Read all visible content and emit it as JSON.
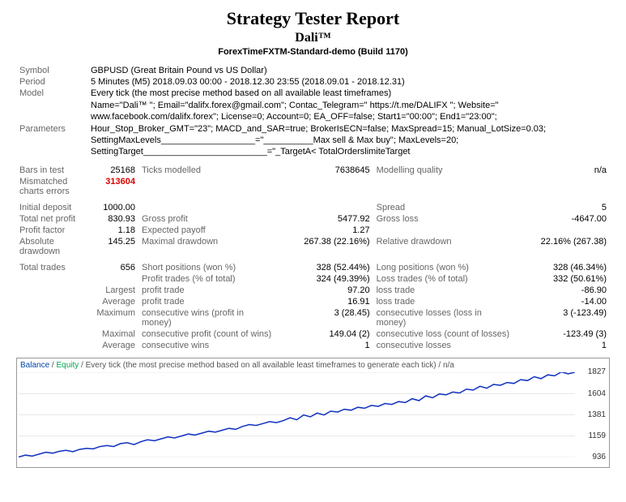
{
  "header": {
    "title": "Strategy Tester Report",
    "ea_name": "Dali™",
    "server": "ForexTimeFXTM-Standard-demo (Build 1170)"
  },
  "info": {
    "symbol_label": "Symbol",
    "symbol_value": "GBPUSD (Great Britain Pound vs US Dollar)",
    "period_label": "Period",
    "period_value": "5 Minutes (M5) 2018.09.03 00:00 - 2018.12.30 23:55 (2018.09.01 - 2018.12.31)",
    "model_label": "Model",
    "model_value": "Every tick (the most precise method based on all available least timeframes)",
    "parameters_label": "Parameters",
    "parameters_value": "Name=\"Dali™ \"; Email=\"dalifx.forex@gmail.com\"; Contac_Telegram=\" https://t.me/DALIFX \"; Website=\" www.facebook.com/dalifx.forex\"; License=0; Account=0; EA_OFF=false; Start1=\"00:00\"; End1=\"23:00\"; Hour_Stop_Broker_GMT=\"23\"; MACD_and_SAR=true; BrokerIsECN=false; MaxSpread=15; Manual_LotSize=0.03; SettingMaxLevels___________________=\"__________Max sell & Max buy\"; MaxLevels=20; SettingTarget_________________________=\"_TargetA< TotalOrderslimiteTarget"
  },
  "stats": {
    "bars_in_test_label": "Bars in test",
    "bars_in_test": "25168",
    "ticks_modelled_label": "Ticks modelled",
    "ticks_modelled": "7638645",
    "modelling_quality_label": "Modelling quality",
    "modelling_quality": "n/a",
    "mismatched_label": "Mismatched charts errors",
    "mismatched": "313604",
    "initial_deposit_label": "Initial deposit",
    "initial_deposit": "1000.00",
    "spread_label": "Spread",
    "spread": "5",
    "total_net_profit_label": "Total net profit",
    "total_net_profit": "830.93",
    "gross_profit_label": "Gross profit",
    "gross_profit": "5477.92",
    "gross_loss_label": "Gross loss",
    "gross_loss": "-4647.00",
    "profit_factor_label": "Profit factor",
    "profit_factor": "1.18",
    "expected_payoff_label": "Expected payoff",
    "expected_payoff": "1.27",
    "absolute_drawdown_label": "Absolute drawdown",
    "absolute_drawdown": "145.25",
    "maximal_drawdown_label": "Maximal drawdown",
    "maximal_drawdown": "267.38 (22.16%)",
    "relative_drawdown_label": "Relative drawdown",
    "relative_drawdown": "22.16% (267.38)",
    "total_trades_label": "Total trades",
    "total_trades": "656",
    "short_positions_label": "Short positions (won %)",
    "short_positions": "328 (52.44%)",
    "long_positions_label": "Long positions (won %)",
    "long_positions": "328 (46.34%)",
    "profit_trades_label": "Profit trades (% of total)",
    "profit_trades": "324 (49.39%)",
    "loss_trades_label": "Loss trades (% of total)",
    "loss_trades": "332 (50.61%)",
    "largest_label": "Largest",
    "largest_profit_trade_label": "profit trade",
    "largest_profit_trade": "97.20",
    "largest_loss_trade_label": "loss trade",
    "largest_loss_trade": "-86.90",
    "average_label": "Average",
    "average_profit_trade_label": "profit trade",
    "average_profit_trade": "16.91",
    "average_loss_trade_label": "loss trade",
    "average_loss_trade": "-14.00",
    "maximum_label": "Maximum",
    "max_cons_wins_label": "consecutive wins (profit in money)",
    "max_cons_wins": "3 (28.45)",
    "max_cons_losses_label": "consecutive losses (loss in money)",
    "max_cons_losses": "3 (-123.49)",
    "maximal_label": "Maximal",
    "max_cons_profit_label": "consecutive profit (count of wins)",
    "max_cons_profit": "149.04 (2)",
    "max_cons_loss_label": "consecutive loss (count of losses)",
    "max_cons_loss": "-123.49 (3)",
    "avg_cons_wins_label": "consecutive wins",
    "avg_cons_wins": "1",
    "avg_cons_losses_label": "consecutive losses",
    "avg_cons_losses": "1"
  },
  "chart": {
    "legend_balance": "Balance",
    "legend_equity": "Equity",
    "legend_desc": "Every tick (the most precise method based on all available least timeframes to generate each tick)",
    "legend_na": "n/a",
    "ylabels": [
      "1827",
      "1604",
      "1381",
      "1159",
      "936"
    ],
    "line_color": "#1030c0",
    "grid_color": "#d0d0d0",
    "balance_color": "#0047ab",
    "equity_color": "#00a651",
    "ymin": 936,
    "ymax": 1827,
    "series": [
      940,
      960,
      950,
      970,
      990,
      980,
      1000,
      1010,
      995,
      1020,
      1030,
      1025,
      1050,
      1060,
      1050,
      1080,
      1090,
      1070,
      1100,
      1120,
      1110,
      1130,
      1150,
      1140,
      1160,
      1180,
      1170,
      1190,
      1210,
      1200,
      1220,
      1240,
      1230,
      1260,
      1280,
      1270,
      1290,
      1310,
      1300,
      1320,
      1350,
      1330,
      1380,
      1360,
      1400,
      1380,
      1420,
      1410,
      1440,
      1430,
      1460,
      1450,
      1480,
      1470,
      1500,
      1490,
      1520,
      1510,
      1550,
      1530,
      1580,
      1560,
      1600,
      1590,
      1620,
      1610,
      1650,
      1640,
      1680,
      1660,
      1700,
      1690,
      1720,
      1710,
      1750,
      1740,
      1780,
      1760,
      1800,
      1790,
      1830,
      1810,
      1827
    ]
  }
}
